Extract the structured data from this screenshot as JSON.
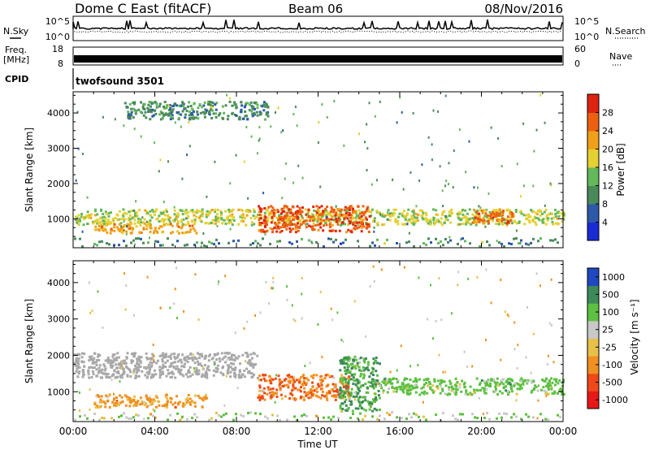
{
  "header": {
    "station": "Dome C East (fitACF)",
    "beam": "Beam 06",
    "date": "08/Nov/2016"
  },
  "top_panels": {
    "nsky_label": "N.Sky",
    "nsearch_label": "N.Search",
    "noise_ticks": [
      "10^5",
      "10^0"
    ],
    "freq_label_line1": "Freq.",
    "freq_label_line2": "[MHz]",
    "freq_ticks": [
      "18",
      "8"
    ],
    "nave_label": "Nave",
    "nave_ticks": [
      "60",
      "0"
    ],
    "cpid_label": "CPID",
    "cpid_value": "twofsound 3501"
  },
  "colors": {
    "power_scale": [
      "#1a2bd6",
      "#2c5aa8",
      "#4a8a5a",
      "#63b85a",
      "#e4d030",
      "#f0a018",
      "#ee6010",
      "#de2410"
    ],
    "velocity_scale": [
      "#e81818",
      "#f04818",
      "#f09020",
      "#e8c048",
      "#c8c8c8",
      "#5cc040",
      "#3c8a58",
      "#2048c0"
    ],
    "ground_scatter": "#a8a8a8"
  },
  "chart_data": [
    {
      "type": "heatmap",
      "name": "power",
      "ylabel": "Slant Range [km]",
      "xlabel": "",
      "x_range_hours": [
        0,
        24
      ],
      "ylim": [
        180,
        4600
      ],
      "yticks": [
        1000,
        2000,
        3000,
        4000
      ],
      "colorbar": {
        "label": "Power [dB]",
        "ticks": [
          "4",
          "8",
          "12",
          "16",
          "20",
          "24",
          "28"
        ],
        "range": [
          0,
          32
        ]
      },
      "features": [
        {
          "t": [
            0.0,
            24.0
          ],
          "r": [
            850,
            1300
          ],
          "value": 17,
          "band": "main echo band"
        },
        {
          "t": [
            1.0,
            6.0
          ],
          "r": [
            620,
            900
          ],
          "value": 22,
          "band": "lower E/F echoes"
        },
        {
          "t": [
            9.0,
            14.5
          ],
          "r": [
            650,
            1400
          ],
          "value": 27,
          "band": "strong midday echoes"
        },
        {
          "t": [
            19.5,
            21.5
          ],
          "r": [
            900,
            1300
          ],
          "value": 25,
          "band": "evening enhancement"
        },
        {
          "t": [
            2.5,
            9.5
          ],
          "r": [
            3850,
            4350
          ],
          "value": 10,
          "band": "far-range scatter"
        }
      ]
    },
    {
      "type": "heatmap",
      "name": "velocity",
      "ylabel": "Slant Range [km]",
      "xlabel": "Time UT",
      "x_range_hours": [
        0,
        24
      ],
      "xticks": [
        "00:00",
        "04:00",
        "08:00",
        "12:00",
        "16:00",
        "20:00",
        "00:00"
      ],
      "ylim": [
        180,
        4600
      ],
      "yticks": [
        1000,
        2000,
        3000,
        4000
      ],
      "colorbar": {
        "label": "Velocity [m s⁻¹]",
        "ticks": [
          "-1000",
          "-500",
          "-100",
          "-25",
          "25",
          "100",
          "500",
          "1000"
        ]
      },
      "features": [
        {
          "t": [
            0.0,
            9.0
          ],
          "r": [
            1400,
            2100
          ],
          "value": 0,
          "band": "ground scatter (grey)"
        },
        {
          "t": [
            1.0,
            6.5
          ],
          "r": [
            600,
            950
          ],
          "value": -120,
          "band": "receding flow"
        },
        {
          "t": [
            9.0,
            13.5
          ],
          "r": [
            800,
            1500
          ],
          "value": -300,
          "band": "strong receding flow"
        },
        {
          "t": [
            13.0,
            15.0
          ],
          "r": [
            500,
            2000
          ],
          "value": 300,
          "band": "approaching flow"
        },
        {
          "t": [
            15.0,
            24.0
          ],
          "r": [
            950,
            1400
          ],
          "value": 150,
          "band": "approaching flow"
        }
      ]
    }
  ]
}
